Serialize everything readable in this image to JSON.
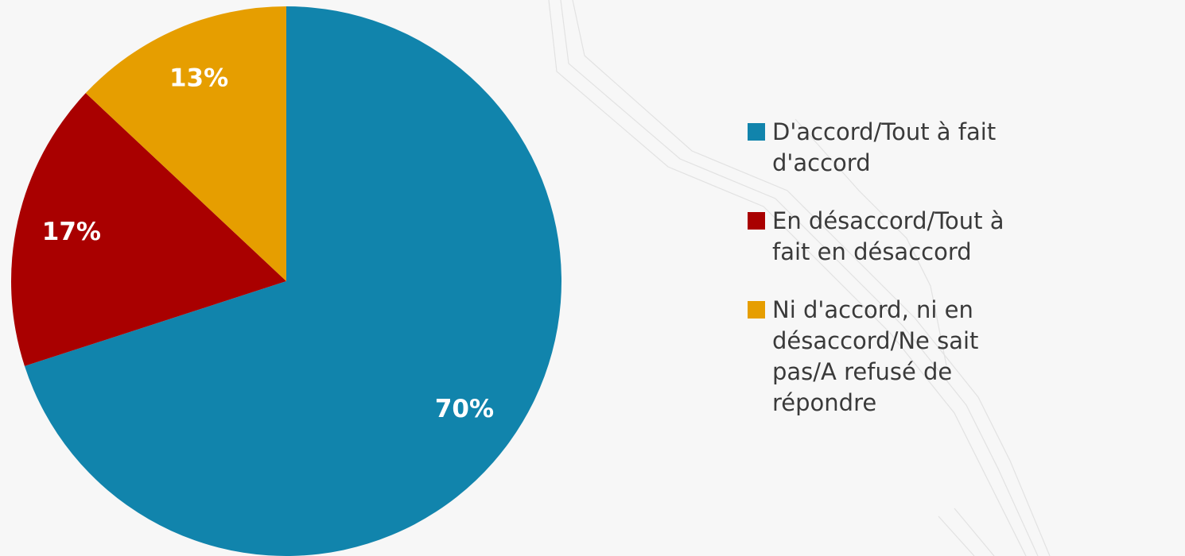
{
  "chart_data": {
    "type": "pie",
    "title": "",
    "slices": [
      {
        "name": "D'accord/Tout à fait d'accord",
        "value": 70,
        "label": "70%",
        "color": "#1184ac"
      },
      {
        "name": "En désaccord/Tout à fait en désaccord",
        "value": 17,
        "label": "17%",
        "color": "#a90000"
      },
      {
        "name": "Ni d'accord, ni en désaccord/Ne sait pas/A refusé de répondre",
        "value": 13,
        "label": "13%",
        "color": "#e69e00"
      }
    ],
    "legend_position": "right"
  }
}
